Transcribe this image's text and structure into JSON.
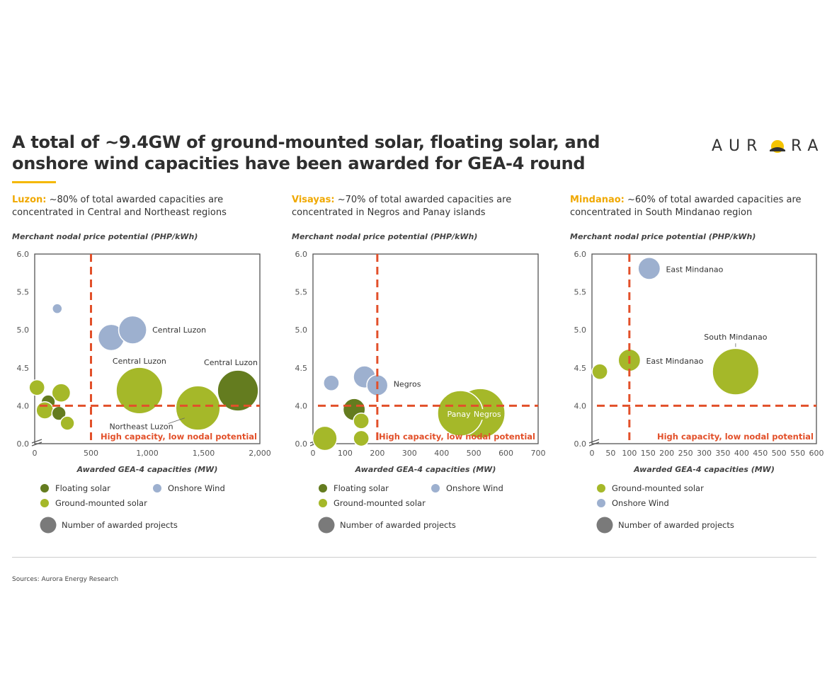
{
  "title_lines": [
    "A total of ~9.4GW of ground-mounted solar, floating solar, and",
    "onshore wind capacities have been awarded for GEA-4 round"
  ],
  "logo": "AURORA",
  "sources": "Sources: Aurora Energy Research",
  "colors": {
    "ground_solar": "#a5b829",
    "floating_solar": "#647c1f",
    "onshore_wind": "#9db0cf",
    "projects": "#7a7a7a",
    "threshold": "#e2502a",
    "accent": "#f0a800"
  },
  "chart_data": [
    {
      "type": "bubble",
      "region": "Luzon:",
      "subtitle_rest": " ~80% of total awarded capacities are",
      "subtitle_line2": "concentrated in Central and Northeast regions",
      "ylabel": "Merchant nodal price potential (PHP/kWh)",
      "xlabel": "Awarded GEA-4 capacities (MW)",
      "xlim": [
        0,
        2000
      ],
      "xticks": [
        "0",
        "500",
        "1,000",
        "1,500",
        "2,000"
      ],
      "xtick_values": [
        0,
        500,
        1000,
        1500,
        2000
      ],
      "ylim": [
        0,
        6.0
      ],
      "y_axis_break": true,
      "yticks": [
        "0.0",
        "4.0",
        "4.5",
        "5.0",
        "5.5",
        "6.0"
      ],
      "ytick_values": [
        3.5,
        4.0,
        4.5,
        5.0,
        5.5,
        6.0
      ],
      "thresholds": {
        "x": 500,
        "y": 4.0
      },
      "quadrant_label": "High capacity, low nodal potential",
      "points": [
        {
          "tech": "onshore_wind",
          "x": 200,
          "y": 5.28,
          "projects": 1
        },
        {
          "tech": "onshore_wind",
          "x": 680,
          "y": 4.9,
          "projects": 7
        },
        {
          "tech": "onshore_wind",
          "x": 870,
          "y": 5.0,
          "projects": 8,
          "label": "Central Luzon"
        },
        {
          "tech": "ground_solar",
          "x": 930,
          "y": 4.2,
          "projects": 22,
          "label": "Central Luzon"
        },
        {
          "tech": "floating_solar",
          "x": 1805,
          "y": 4.2,
          "projects": 17,
          "label": "Central Luzon"
        },
        {
          "tech": "ground_solar",
          "x": 1450,
          "y": 3.97,
          "projects": 20,
          "label": "Northeast Luzon"
        },
        {
          "tech": "ground_solar",
          "x": 20,
          "y": 4.24,
          "projects": 2.5
        },
        {
          "tech": "ground_solar",
          "x": 235,
          "y": 4.17,
          "projects": 3.5
        },
        {
          "tech": "floating_solar",
          "x": 120,
          "y": 4.05,
          "projects": 2
        },
        {
          "tech": "ground_solar",
          "x": 90,
          "y": 3.94,
          "projects": 3
        },
        {
          "tech": "floating_solar",
          "x": 215,
          "y": 3.9,
          "projects": 2
        },
        {
          "tech": "ground_solar",
          "x": 290,
          "y": 3.77,
          "projects": 2
        }
      ],
      "legend": [
        {
          "tech": "floating_solar",
          "label": "Floating solar"
        },
        {
          "tech": "onshore_wind",
          "label": "Onshore Wind"
        },
        {
          "tech": "ground_solar",
          "label": "Ground-mounted solar"
        }
      ],
      "size_legend": "Number of awarded projects"
    },
    {
      "type": "bubble",
      "region": "Visayas:",
      "subtitle_rest": " ~70% of total awarded capacities are",
      "subtitle_line2": "concentrated in Negros and Panay islands",
      "ylabel": "Merchant nodal price potential (PHP/kWh)",
      "xlabel": "Awarded GEA-4 capacities (MW)",
      "xlim": [
        0,
        700
      ],
      "xticks": [
        "0",
        "100",
        "200",
        "300",
        "400",
        "500",
        "600",
        "700"
      ],
      "xtick_values": [
        0,
        100,
        200,
        300,
        400,
        500,
        600,
        700
      ],
      "ylim": [
        0,
        6.0
      ],
      "y_axis_break": true,
      "yticks": [
        "0.0",
        "4.0",
        "4.5",
        "5.0",
        "5.5",
        "6.0"
      ],
      "ytick_values": [
        3.5,
        4.0,
        4.5,
        5.0,
        5.5,
        6.0
      ],
      "thresholds": {
        "x": 200,
        "y": 4.0
      },
      "quadrant_label": "High capacity, low nodal potential",
      "points": [
        {
          "tech": "onshore_wind",
          "x": 57,
          "y": 4.3,
          "projects": 2.5
        },
        {
          "tech": "onshore_wind",
          "x": 160,
          "y": 4.38,
          "projects": 5
        },
        {
          "tech": "onshore_wind",
          "x": 200,
          "y": 4.27,
          "projects": 4.5,
          "label": "Negros"
        },
        {
          "tech": "floating_solar",
          "x": 128,
          "y": 3.95,
          "projects": 5
        },
        {
          "tech": "ground_solar",
          "x": 150,
          "y": 3.8,
          "projects": 2.5
        },
        {
          "tech": "ground_solar",
          "x": 150,
          "y": 3.57,
          "projects": 2.5
        },
        {
          "tech": "ground_solar",
          "x": 37,
          "y": 3.57,
          "projects": 6
        },
        {
          "tech": "ground_solar",
          "x": 520,
          "y": 3.9,
          "projects": 25,
          "label": "Negros"
        },
        {
          "tech": "ground_solar",
          "x": 458,
          "y": 3.9,
          "projects": 21,
          "label": "Panay"
        }
      ],
      "legend": [
        {
          "tech": "floating_solar",
          "label": "Floating solar"
        },
        {
          "tech": "onshore_wind",
          "label": "Onshore Wind"
        },
        {
          "tech": "ground_solar",
          "label": "Ground-mounted solar"
        }
      ],
      "size_legend": "Number of awarded projects"
    },
    {
      "type": "bubble",
      "region": "Mindanao:",
      "subtitle_rest": " ~60% of total awarded capacities are",
      "subtitle_line2": "concentrated in South Mindanao region",
      "ylabel": "Merchant nodal price potential (PHP/kWh)",
      "xlabel": "Awarded GEA-4 capacities (MW)",
      "xlim": [
        0,
        600
      ],
      "xticks": [
        "0",
        "50",
        "100",
        "150",
        "200",
        "250",
        "300",
        "350",
        "400",
        "450",
        "500",
        "550",
        "600"
      ],
      "xtick_values": [
        0,
        50,
        100,
        150,
        200,
        250,
        300,
        350,
        400,
        450,
        500,
        550,
        600
      ],
      "ylim": [
        0,
        6.0
      ],
      "y_axis_break": true,
      "yticks": [
        "0.0",
        "4.0",
        "4.5",
        "5.0",
        "5.5",
        "6.0"
      ],
      "ytick_values": [
        3.5,
        4.0,
        4.5,
        5.0,
        5.5,
        6.0
      ],
      "thresholds": {
        "x": 100,
        "y": 4.0
      },
      "quadrant_label": "High capacity, low nodal potential",
      "points": [
        {
          "tech": "onshore_wind",
          "x": 153,
          "y": 5.81,
          "projects": 5,
          "label": "East Mindanao"
        },
        {
          "tech": "ground_solar",
          "x": 100,
          "y": 4.6,
          "projects": 5,
          "label": "East Mindanao"
        },
        {
          "tech": "ground_solar",
          "x": 21,
          "y": 4.45,
          "projects": 2.5
        },
        {
          "tech": "ground_solar",
          "x": 384,
          "y": 4.45,
          "projects": 22,
          "label": "South Mindanao"
        }
      ],
      "legend": [
        {
          "tech": "ground_solar",
          "label": "Ground-mounted solar"
        },
        {
          "tech": "onshore_wind",
          "label": "Onshore Wind"
        }
      ],
      "size_legend": "Number of awarded projects"
    }
  ]
}
